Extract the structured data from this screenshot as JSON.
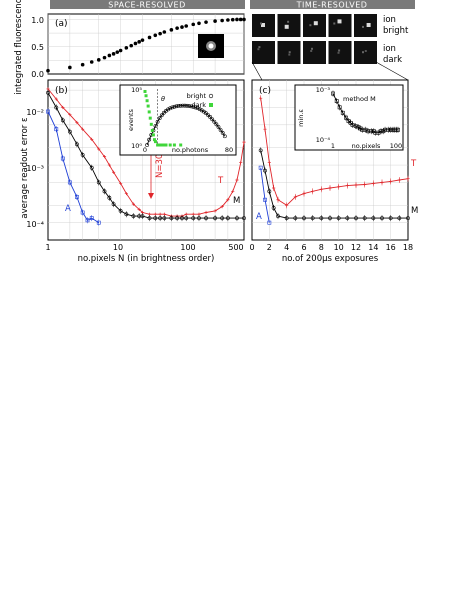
{
  "headers": {
    "left": "SPACE-RESOLVED",
    "right": "TIME-RESOLVED"
  },
  "ion_labels": {
    "bright": "ion\nbright",
    "dark": "ion\ndark"
  },
  "colors": {
    "blue": "#1f3fd6",
    "black": "#000000",
    "red": "#e0252a",
    "green": "#3fd63a",
    "grid": "#c9c9c9",
    "header": "#7a7a7a"
  },
  "chart_data": [
    {
      "id": "a",
      "panel_label": "(a)",
      "type": "scatter",
      "ylabel": "integrated fluorescence",
      "yticks": [
        "0.0",
        "0.5",
        "1.0"
      ],
      "ylim": [
        0,
        1.1
      ],
      "xlim": [
        1,
        500
      ],
      "xscale": "log",
      "series": [
        {
          "color": "black",
          "x": [
            1,
            2,
            3,
            4,
            5,
            6,
            7,
            8,
            9,
            10,
            12,
            14,
            16,
            18,
            20,
            25,
            30,
            35,
            40,
            50,
            60,
            70,
            80,
            100,
            120,
            150,
            200,
            250,
            300,
            350,
            400,
            450,
            500
          ],
          "y": [
            0.06,
            0.12,
            0.17,
            0.22,
            0.26,
            0.3,
            0.34,
            0.37,
            0.4,
            0.43,
            0.48,
            0.52,
            0.56,
            0.59,
            0.62,
            0.67,
            0.71,
            0.74,
            0.77,
            0.81,
            0.84,
            0.86,
            0.88,
            0.91,
            0.93,
            0.95,
            0.97,
            0.98,
            0.99,
            0.995,
            1.0,
            1.0,
            1.0
          ]
        }
      ]
    },
    {
      "id": "b",
      "panel_label": "(b)",
      "type": "line",
      "xlabel": "no.pixels N (in brightness order)",
      "ylabel": "average readout error ε",
      "xscale": "log",
      "yscale": "log",
      "xlim": [
        1,
        500
      ],
      "ylim": [
        5e-05,
        0.03
      ],
      "xticks": [
        "1",
        "10",
        "100",
        "500"
      ],
      "yticks": [
        "10⁻⁴",
        "10⁻³",
        "10⁻²"
      ],
      "annotations": {
        "n30": "N=30"
      },
      "series": [
        {
          "name": "A",
          "color": "blue",
          "x": [
            1,
            1.3,
            1.6,
            2,
            2.5,
            3,
            3.5,
            4,
            5
          ],
          "y": [
            0.0085,
            0.0042,
            0.0013,
            0.0005,
            0.00028,
            0.00015,
            0.00011,
            0.00012,
            0.0001
          ]
        },
        {
          "name": "M",
          "color": "black",
          "x": [
            1,
            1.3,
            1.6,
            2,
            2.5,
            3,
            4,
            5,
            6,
            7,
            8,
            10,
            12,
            15,
            18,
            20,
            25,
            30,
            35,
            40,
            50,
            60,
            70,
            80,
            100,
            120,
            150,
            200,
            250,
            300,
            400,
            500
          ],
          "y": [
            0.018,
            0.01,
            0.006,
            0.0038,
            0.0023,
            0.0015,
            0.0009,
            0.0005,
            0.00035,
            0.00027,
            0.00021,
            0.00016,
            0.00014,
            0.00013,
            0.00013,
            0.00013,
            0.00012,
            0.00012,
            0.00012,
            0.00012,
            0.00012,
            0.00012,
            0.00012,
            0.00012,
            0.00012,
            0.00012,
            0.00012,
            0.00012,
            0.00012,
            0.00012,
            0.00012,
            0.00012
          ]
        },
        {
          "name": "T",
          "color": "red",
          "x": [
            1,
            1.3,
            1.6,
            2,
            2.5,
            3,
            4,
            5,
            6,
            7,
            8,
            10,
            12,
            15,
            18,
            20,
            25,
            30,
            35,
            40,
            50,
            60,
            70,
            80,
            100,
            120,
            150,
            200,
            250,
            300,
            350,
            400,
            450,
            500
          ],
          "y": [
            0.021,
            0.014,
            0.01,
            0.0075,
            0.0055,
            0.0042,
            0.0028,
            0.0019,
            0.0014,
            0.001,
            0.00075,
            0.00048,
            0.00032,
            0.00021,
            0.00017,
            0.00015,
            0.00014,
            0.00014,
            0.00014,
            0.00014,
            0.00013,
            0.00013,
            0.00013,
            0.00014,
            0.00014,
            0.00014,
            0.00015,
            0.00016,
            0.00019,
            0.00025,
            0.00035,
            0.00055,
            0.0011,
            0.0025
          ]
        }
      ]
    },
    {
      "id": "b_inset",
      "type": "line",
      "xlabel": "no.photons",
      "ylabel": "events",
      "xlim": [
        0,
        80
      ],
      "yscale": "log",
      "xticks": [
        "0",
        "80"
      ],
      "yticks": [
        "10⁰",
        "10⁵"
      ],
      "annotations": {
        "theta": "θ"
      },
      "series": [
        {
          "name": "bright",
          "color": "black",
          "x": [
            2,
            4,
            6,
            8,
            10,
            12,
            14,
            16,
            18,
            20,
            22,
            24,
            26,
            28,
            30,
            32,
            34,
            36,
            38,
            40,
            42,
            44,
            46,
            48,
            50,
            52,
            54,
            56,
            58,
            60,
            62,
            64,
            66,
            68,
            70,
            72,
            74,
            76
          ],
          "y": [
            1,
            3,
            8,
            20,
            50,
            120,
            250,
            450,
            750,
            1100,
            1500,
            1900,
            2300,
            2600,
            2900,
            3100,
            3200,
            3300,
            3250,
            3150,
            3000,
            2800,
            2550,
            2250,
            1950,
            1600,
            1250,
            950,
            700,
            480,
            320,
            200,
            120,
            70,
            40,
            22,
            12,
            6
          ]
        },
        {
          "name": "dark",
          "color": "green",
          "x": [
            0,
            1,
            2,
            3,
            4,
            5,
            6,
            7,
            8,
            9,
            10,
            12,
            14,
            16,
            18,
            20,
            24,
            28,
            34
          ],
          "y": [
            60000,
            25000,
            9000,
            3000,
            900,
            250,
            70,
            20,
            8,
            3,
            2,
            1,
            1,
            1,
            1,
            1,
            1,
            1,
            1
          ]
        }
      ]
    },
    {
      "id": "c",
      "panel_label": "(c)",
      "type": "line",
      "xlabel": "no.of 200μs exposures",
      "yscale": "log",
      "xlim": [
        0,
        18
      ],
      "ylim": [
        5e-05,
        0.03
      ],
      "xticks": [
        "0",
        "2",
        "4",
        "6",
        "8",
        "10",
        "12",
        "14",
        "16",
        "18"
      ],
      "series": [
        {
          "name": "A",
          "color": "blue",
          "x": [
            1,
            1.5,
            2
          ],
          "y": [
            0.0009,
            0.00025,
            0.0001
          ]
        },
        {
          "name": "M",
          "color": "black",
          "x": [
            1,
            1.5,
            2,
            2.5,
            3,
            4,
            5,
            6,
            7,
            8,
            9,
            10,
            11,
            12,
            13,
            14,
            15,
            16,
            17,
            18
          ],
          "y": [
            0.0018,
            0.0008,
            0.00035,
            0.00018,
            0.00013,
            0.00012,
            0.00012,
            0.00012,
            0.00012,
            0.00012,
            0.00012,
            0.00012,
            0.00012,
            0.00012,
            0.00012,
            0.00012,
            0.00012,
            0.00012,
            0.00012,
            0.00012
          ]
        },
        {
          "name": "T",
          "color": "red",
          "x": [
            1,
            1.5,
            2,
            2.5,
            3,
            4,
            5,
            6,
            7,
            8,
            9,
            10,
            11,
            12,
            13,
            14,
            15,
            16,
            17,
            18
          ],
          "y": [
            0.0145,
            0.0042,
            0.0011,
            0.0004,
            0.00025,
            0.0002,
            0.00028,
            0.00032,
            0.00035,
            0.00038,
            0.0004,
            0.00042,
            0.00044,
            0.00045,
            0.00046,
            0.00048,
            0.0005,
            0.00052,
            0.00055,
            0.00058
          ]
        }
      ]
    },
    {
      "id": "c_inset",
      "type": "line",
      "title": "method M",
      "xlabel": "no.pixels",
      "ylabel": "min.ε",
      "xscale": "log",
      "yscale": "log",
      "xlim": [
        1,
        100
      ],
      "ylim": [
        0.0001,
        0.001
      ],
      "xticks": [
        "1",
        "100"
      ],
      "yticks": [
        "10⁻⁴",
        "10⁻³"
      ],
      "series": [
        {
          "name": "M",
          "color": "black",
          "x": [
            1,
            1.3,
            1.6,
            2,
            2.5,
            3,
            3.5,
            4,
            5,
            6,
            7,
            8,
            10,
            12,
            15,
            18,
            20,
            25,
            30,
            35,
            40,
            50,
            60,
            70,
            80,
            90,
            100
          ],
          "y": [
            0.00085,
            0.0006,
            0.00045,
            0.00035,
            0.00028,
            0.00024,
            0.00022,
            0.0002,
            0.00019,
            0.00018,
            0.00017,
            0.00016,
            0.00016,
            0.00015,
            0.00015,
            0.00015,
            0.00014,
            0.00014,
            0.00015,
            0.00015,
            0.00016,
            0.00016,
            0.00016,
            0.00016,
            0.00016,
            0.00016,
            0.00016
          ]
        }
      ]
    }
  ]
}
